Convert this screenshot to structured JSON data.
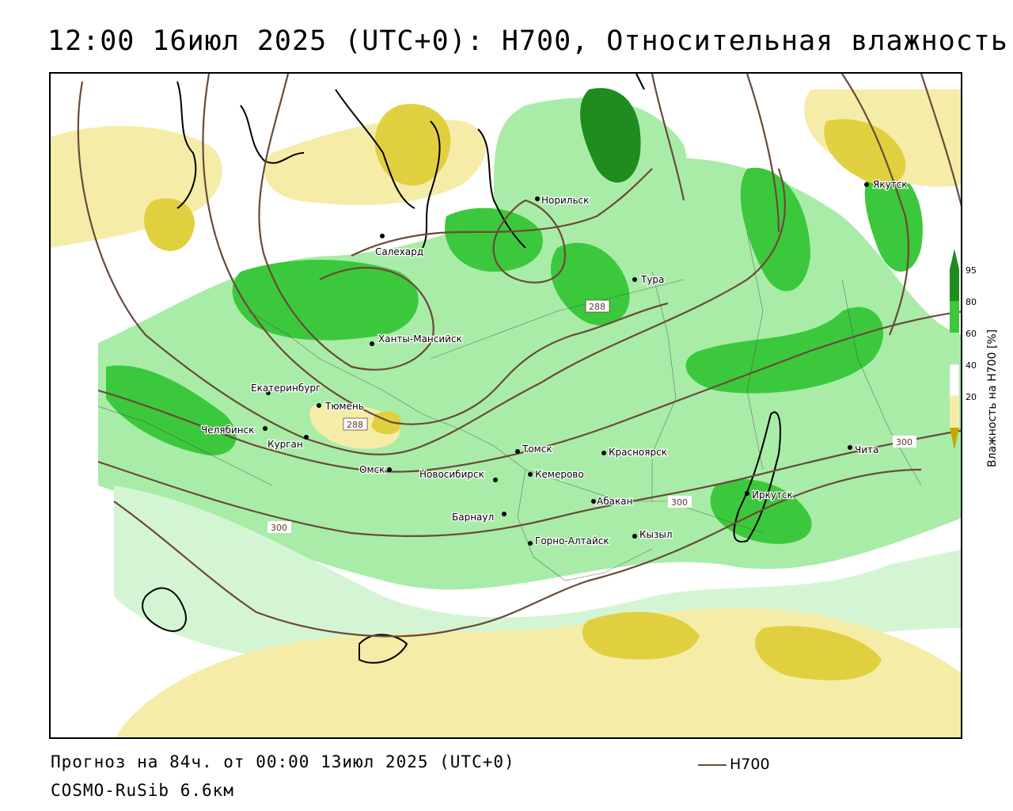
{
  "title": "12:00 16июл 2025 (UTC+0): H700, Относительная влажность",
  "footer": {
    "forecast": "Прогноз на 84ч. от 00:00 13июл 2025 (UTC+0)",
    "model": "COSMO-RuSib 6.6км",
    "line_legend_label": "H700"
  },
  "legend": {
    "title": "Влажность на H700 [%]",
    "ticks": [
      "95",
      "80",
      "60",
      "40",
      "20"
    ],
    "colors": {
      "very_dry": "#c8a800",
      "dry": "#e0d040",
      "light_dry": "#f5eca8",
      "neutral": "#ffffff",
      "light_wet": "#a8eca8",
      "wet": "#3cc83c",
      "very_wet": "#1e8c1e"
    }
  },
  "cities": [
    {
      "name": "Якутск"
    },
    {
      "name": "Норильск"
    },
    {
      "name": "Салехард"
    },
    {
      "name": "Тура"
    },
    {
      "name": "Ханты-Мансийск"
    },
    {
      "name": "Екатеринбург"
    },
    {
      "name": "Тюмень"
    },
    {
      "name": "Челябинск"
    },
    {
      "name": "Курган"
    },
    {
      "name": "Омск"
    },
    {
      "name": "Новосибирск"
    },
    {
      "name": "Томск"
    },
    {
      "name": "Кемерово"
    },
    {
      "name": "Красноярск"
    },
    {
      "name": "Абакан"
    },
    {
      "name": "Барнаул"
    },
    {
      "name": "Горно-Алтайск"
    },
    {
      "name": "Кызыл"
    },
    {
      "name": "Иркутск"
    },
    {
      "name": "Чита"
    }
  ],
  "contour_labels": [
    "288",
    "288",
    "300",
    "300",
    "300"
  ],
  "contour_color": "#6b4a3a"
}
